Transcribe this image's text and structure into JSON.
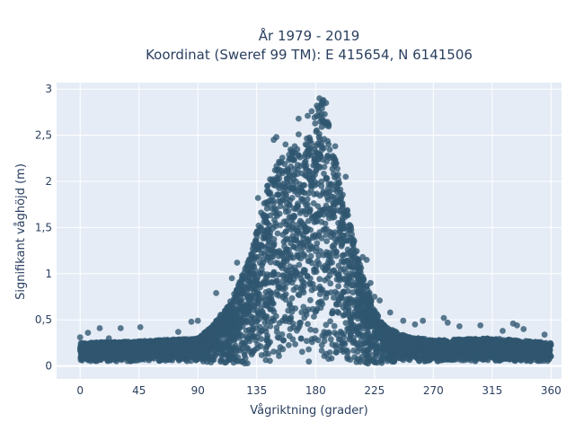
{
  "chart_data": {
    "type": "scatter",
    "title": "År 1979 - 2019",
    "subtitle": "Koordinat (Sweref 99 TM): E 415654, N 6141506",
    "xlabel": "Vågriktning (grader)",
    "ylabel": "Signifikant våghöjd (m)",
    "xlim": [
      -18,
      368
    ],
    "ylim": [
      -0.14,
      3.07
    ],
    "x_ticks": [
      0,
      45,
      90,
      135,
      180,
      225,
      270,
      315,
      360
    ],
    "x_tick_labels": [
      "0",
      "45",
      "90",
      "135",
      "180",
      "225",
      "270",
      "315",
      "360"
    ],
    "y_ticks": [
      0,
      0.5,
      1,
      1.5,
      2,
      2.5,
      3
    ],
    "y_tick_labels": [
      "0",
      "0,5",
      "1",
      "1,5",
      "2",
      "2,5",
      "3"
    ],
    "grid": true,
    "legend": "none",
    "marker_color": "#2f5670",
    "background_color": "#e5ecf6",
    "envelope": {
      "x": [
        0,
        45,
        90,
        100,
        110,
        120,
        130,
        135,
        140,
        145,
        150,
        155,
        160,
        165,
        170,
        175,
        180,
        185,
        190,
        195,
        200,
        205,
        210,
        215,
        220,
        225,
        230,
        240,
        250,
        260,
        270,
        315,
        360
      ],
      "y_upper": [
        0.25,
        0.27,
        0.3,
        0.42,
        0.6,
        0.85,
        1.2,
        1.5,
        1.8,
        2.05,
        2.2,
        2.3,
        2.35,
        2.35,
        2.4,
        2.5,
        2.75,
        2.9,
        2.6,
        2.25,
        1.95,
        1.65,
        1.35,
        1.05,
        0.85,
        0.62,
        0.48,
        0.38,
        0.32,
        0.3,
        0.28,
        0.3,
        0.25
      ],
      "y_lower": [
        0.05,
        0.05,
        0.05,
        0.03,
        0.02,
        0.02,
        0.02,
        0.02,
        0.02,
        0.02,
        0.02,
        0.02,
        0.02,
        0.02,
        0.02,
        0.02,
        0.02,
        0.02,
        0.02,
        0.02,
        0.02,
        0.02,
        0.02,
        0.02,
        0.02,
        0.02,
        0.03,
        0.04,
        0.05,
        0.05,
        0.05,
        0.05,
        0.05
      ]
    },
    "outliers": [
      {
        "x": 0,
        "y": 0.31
      },
      {
        "x": 6,
        "y": 0.36
      },
      {
        "x": 15,
        "y": 0.41
      },
      {
        "x": 31,
        "y": 0.41
      },
      {
        "x": 46,
        "y": 0.42
      },
      {
        "x": 22,
        "y": 0.3
      },
      {
        "x": 75,
        "y": 0.37
      },
      {
        "x": 85,
        "y": 0.48
      },
      {
        "x": 90,
        "y": 0.49
      },
      {
        "x": 104,
        "y": 0.79
      },
      {
        "x": 116,
        "y": 0.95
      },
      {
        "x": 120,
        "y": 1.12
      },
      {
        "x": 136,
        "y": 1.82
      },
      {
        "x": 148,
        "y": 2.45
      },
      {
        "x": 150,
        "y": 2.48
      },
      {
        "x": 157,
        "y": 2.4
      },
      {
        "x": 164,
        "y": 2.38
      },
      {
        "x": 167,
        "y": 2.51
      },
      {
        "x": 167,
        "y": 2.68
      },
      {
        "x": 174,
        "y": 2.71
      },
      {
        "x": 177,
        "y": 2.76
      },
      {
        "x": 181,
        "y": 2.82
      },
      {
        "x": 183,
        "y": 2.9
      },
      {
        "x": 186,
        "y": 2.88
      },
      {
        "x": 188,
        "y": 2.85
      },
      {
        "x": 190,
        "y": 2.62
      },
      {
        "x": 195,
        "y": 2.38
      },
      {
        "x": 203,
        "y": 2.05
      },
      {
        "x": 216,
        "y": 1.18
      },
      {
        "x": 219,
        "y": 1.15
      },
      {
        "x": 222,
        "y": 0.9
      },
      {
        "x": 225,
        "y": 0.75
      },
      {
        "x": 229,
        "y": 0.71
      },
      {
        "x": 237,
        "y": 0.58
      },
      {
        "x": 247,
        "y": 0.49
      },
      {
        "x": 256,
        "y": 0.45
      },
      {
        "x": 262,
        "y": 0.49
      },
      {
        "x": 278,
        "y": 0.52
      },
      {
        "x": 281,
        "y": 0.47
      },
      {
        "x": 290,
        "y": 0.43
      },
      {
        "x": 306,
        "y": 0.44
      },
      {
        "x": 323,
        "y": 0.38
      },
      {
        "x": 331,
        "y": 0.46
      },
      {
        "x": 334,
        "y": 0.44
      },
      {
        "x": 339,
        "y": 0.4
      },
      {
        "x": 355,
        "y": 0.34
      }
    ]
  }
}
